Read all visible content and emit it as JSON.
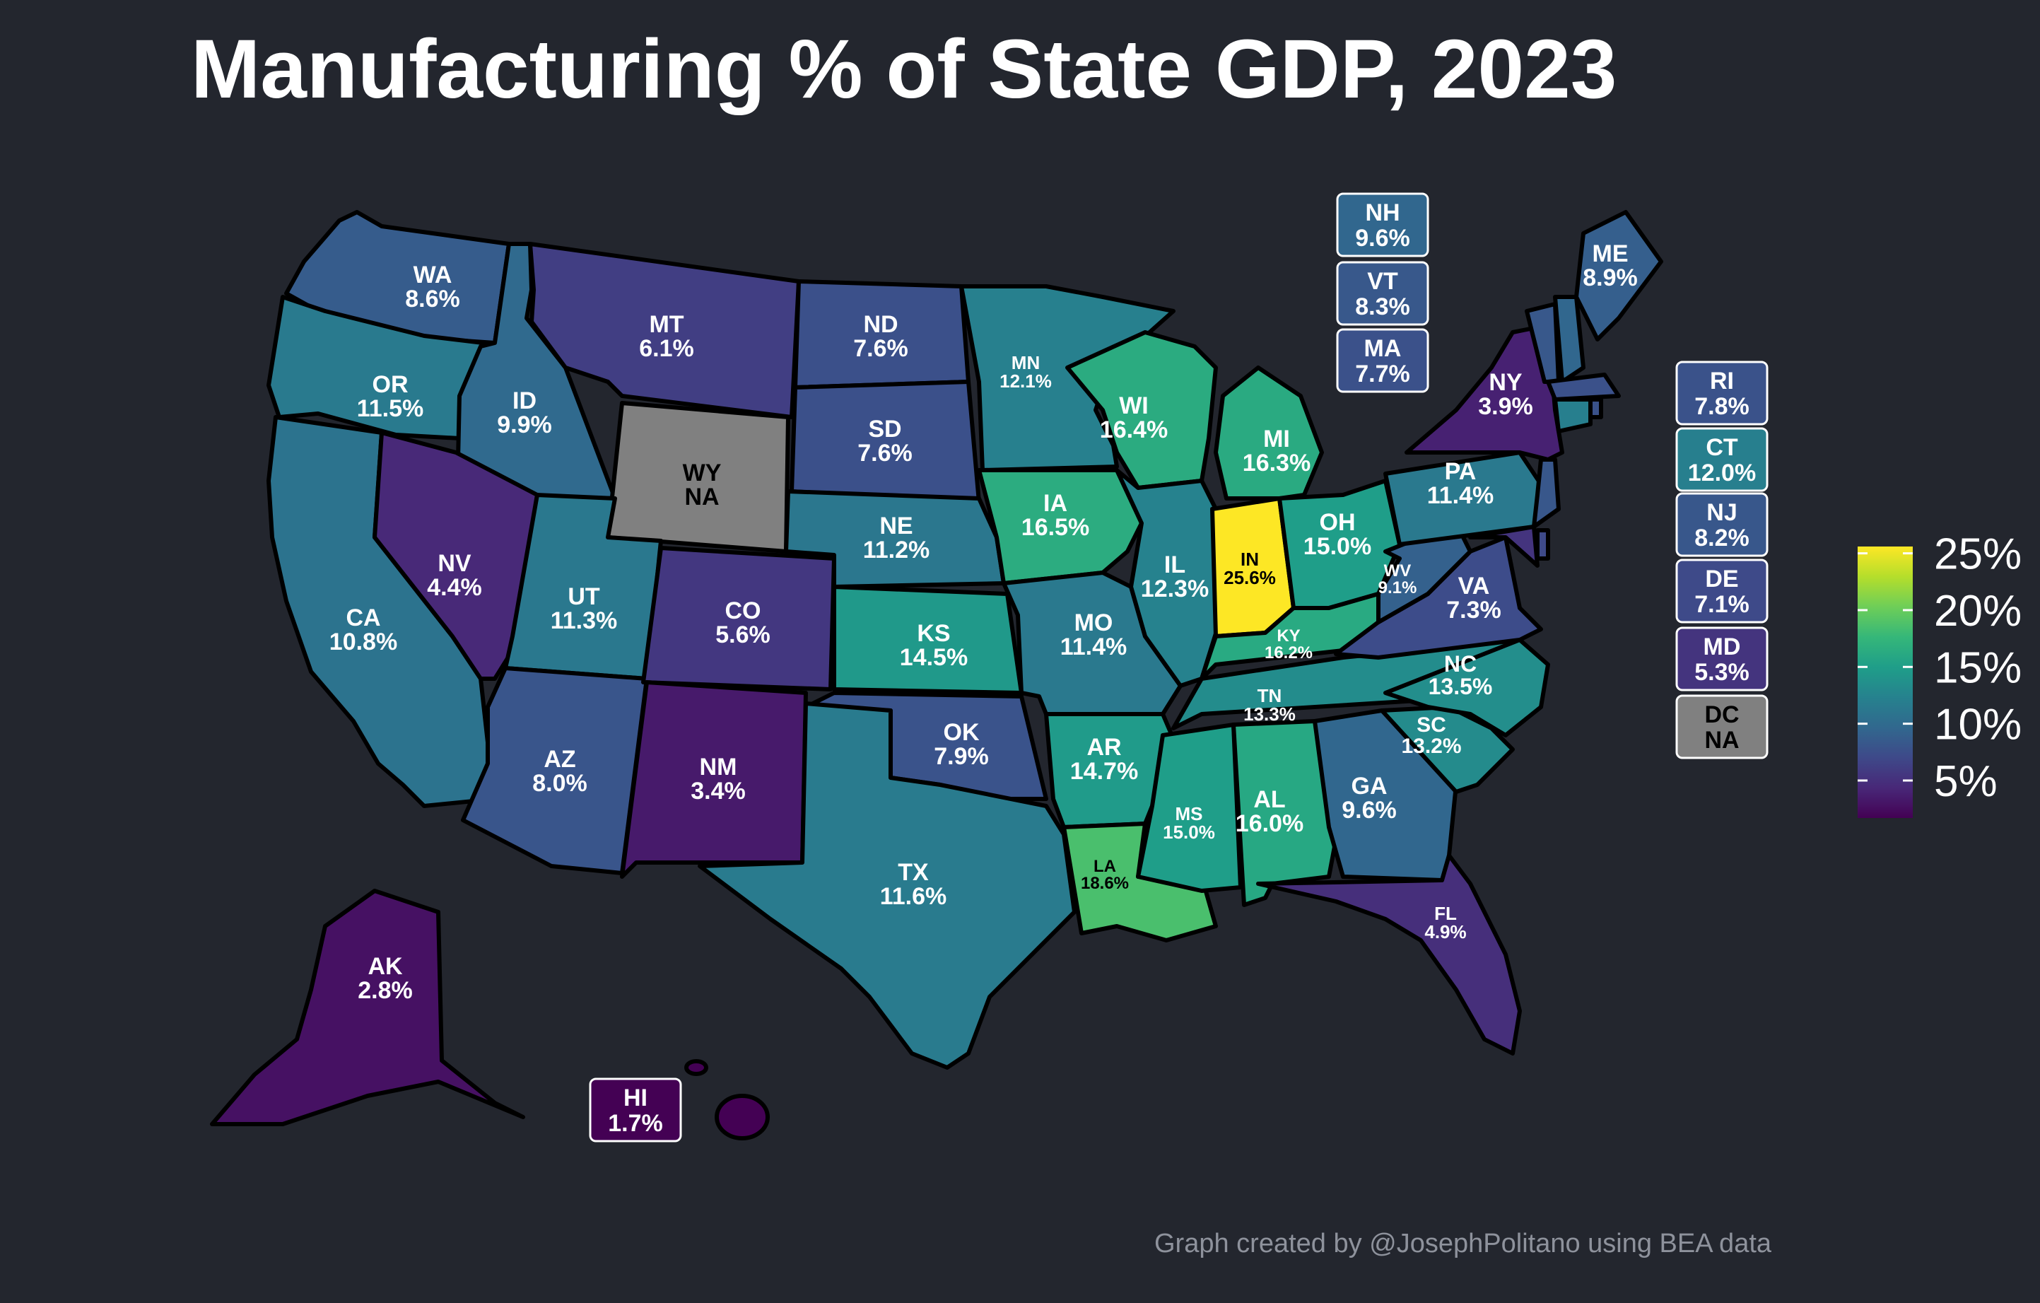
{
  "title": "Manufacturing % of State GDP, 2023",
  "credit": "Graph created by @JosephPolitano using BEA data",
  "colors": {
    "background": "#23262e",
    "na_fill": "#808080",
    "scale": [
      "#440154",
      "#482878",
      "#3e4989",
      "#31688e",
      "#26828e",
      "#1f9e89",
      "#35b779",
      "#6ece58",
      "#b5de2b",
      "#fde725"
    ]
  },
  "legend": {
    "labels": [
      "25%",
      "20%",
      "15%",
      "10%",
      "5%"
    ],
    "ticks": [
      25,
      20,
      15,
      10,
      5
    ],
    "min": 1.7,
    "max": 25.6
  },
  "states": [
    {
      "abbr": "WA",
      "value": 8.6,
      "label": "8.6%"
    },
    {
      "abbr": "OR",
      "value": 11.5,
      "label": "11.5%"
    },
    {
      "abbr": "CA",
      "value": 10.8,
      "label": "10.8%"
    },
    {
      "abbr": "ID",
      "value": 9.9,
      "label": "9.9%"
    },
    {
      "abbr": "NV",
      "value": 4.4,
      "label": "4.4%"
    },
    {
      "abbr": "MT",
      "value": 6.1,
      "label": "6.1%"
    },
    {
      "abbr": "WY",
      "value": null,
      "label": "NA"
    },
    {
      "abbr": "UT",
      "value": 11.3,
      "label": "11.3%"
    },
    {
      "abbr": "AZ",
      "value": 8.0,
      "label": "8.0%"
    },
    {
      "abbr": "CO",
      "value": 5.6,
      "label": "5.6%"
    },
    {
      "abbr": "NM",
      "value": 3.4,
      "label": "3.4%"
    },
    {
      "abbr": "ND",
      "value": 7.6,
      "label": "7.6%"
    },
    {
      "abbr": "SD",
      "value": 7.6,
      "label": "7.6%"
    },
    {
      "abbr": "NE",
      "value": 11.2,
      "label": "11.2%"
    },
    {
      "abbr": "KS",
      "value": 14.5,
      "label": "14.5%"
    },
    {
      "abbr": "OK",
      "value": 7.9,
      "label": "7.9%"
    },
    {
      "abbr": "TX",
      "value": 11.6,
      "label": "11.6%"
    },
    {
      "abbr": "MN",
      "value": 12.1,
      "label": "12.1%"
    },
    {
      "abbr": "IA",
      "value": 16.5,
      "label": "16.5%"
    },
    {
      "abbr": "MO",
      "value": 11.4,
      "label": "11.4%"
    },
    {
      "abbr": "AR",
      "value": 14.7,
      "label": "14.7%"
    },
    {
      "abbr": "LA",
      "value": 18.6,
      "label": "18.6%"
    },
    {
      "abbr": "WI",
      "value": 16.4,
      "label": "16.4%"
    },
    {
      "abbr": "IL",
      "value": 12.3,
      "label": "12.3%"
    },
    {
      "abbr": "MI",
      "value": 16.3,
      "label": "16.3%"
    },
    {
      "abbr": "IN",
      "value": 25.6,
      "label": "25.6%"
    },
    {
      "abbr": "OH",
      "value": 15.0,
      "label": "15.0%"
    },
    {
      "abbr": "KY",
      "value": 16.2,
      "label": "16.2%"
    },
    {
      "abbr": "TN",
      "value": 13.3,
      "label": "13.3%"
    },
    {
      "abbr": "MS",
      "value": 15.0,
      "label": "15.0%"
    },
    {
      "abbr": "AL",
      "value": 16.0,
      "label": "16.0%"
    },
    {
      "abbr": "GA",
      "value": 9.6,
      "label": "9.6%"
    },
    {
      "abbr": "FL",
      "value": 4.9,
      "label": "4.9%"
    },
    {
      "abbr": "SC",
      "value": 13.2,
      "label": "13.2%"
    },
    {
      "abbr": "NC",
      "value": 13.5,
      "label": "13.5%"
    },
    {
      "abbr": "VA",
      "value": 7.3,
      "label": "7.3%"
    },
    {
      "abbr": "WV",
      "value": 9.1,
      "label": "9.1%"
    },
    {
      "abbr": "PA",
      "value": 11.4,
      "label": "11.4%"
    },
    {
      "abbr": "NY",
      "value": 3.9,
      "label": "3.9%"
    },
    {
      "abbr": "ME",
      "value": 8.9,
      "label": "8.9%"
    },
    {
      "abbr": "AK",
      "value": 2.8,
      "label": "2.8%"
    },
    {
      "abbr": "HI",
      "value": 1.7,
      "label": "1.7%"
    },
    {
      "abbr": "NH",
      "value": 9.6,
      "label": "9.6%"
    },
    {
      "abbr": "VT",
      "value": 8.3,
      "label": "8.3%"
    },
    {
      "abbr": "MA",
      "value": 7.7,
      "label": "7.7%"
    },
    {
      "abbr": "RI",
      "value": 7.8,
      "label": "7.8%"
    },
    {
      "abbr": "CT",
      "value": 12.0,
      "label": "12.0%"
    },
    {
      "abbr": "NJ",
      "value": 8.2,
      "label": "8.2%"
    },
    {
      "abbr": "DE",
      "value": 7.1,
      "label": "7.1%"
    },
    {
      "abbr": "MD",
      "value": 5.3,
      "label": "5.3%"
    },
    {
      "abbr": "DC",
      "value": null,
      "label": "NA"
    }
  ]
}
